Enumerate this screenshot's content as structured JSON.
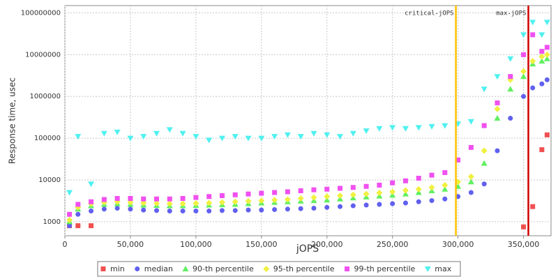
{
  "chart_data": {
    "type": "scatter",
    "log_y": true,
    "grid": true,
    "y_label": "Response time, usec",
    "x_label": "jOPS",
    "xlim": [
      0,
      371000
    ],
    "ylim": [
      460,
      150000000
    ],
    "xticks": [
      0,
      {
        "value": 50000,
        "label": "50,000"
      },
      {
        "value": 100000,
        "label": "100,000"
      },
      {
        "value": 150000,
        "label": "150,000"
      },
      {
        "value": 200000,
        "label": "200,000"
      },
      {
        "value": 250000,
        "label": "250,000"
      },
      {
        "value": 300000,
        "label": "300,000"
      },
      {
        "value": 350000,
        "label": "350,000"
      }
    ],
    "yticks": [
      1000,
      10000,
      100000,
      1000000,
      10000000,
      100000000
    ],
    "vlines": [
      {
        "label": "critical-jOPS",
        "value": 298400,
        "color": "#ffc000"
      },
      {
        "label": "max-jOPS",
        "value": 353700,
        "color": "#d00000"
      }
    ],
    "x": [
      3500,
      10000,
      20000,
      30000,
      40000,
      50000,
      60000,
      70000,
      80000,
      90000,
      100000,
      110000,
      120000,
      130000,
      140000,
      150000,
      160000,
      170000,
      180000,
      190000,
      200000,
      210000,
      220000,
      230000,
      240000,
      250000,
      260000,
      270000,
      280000,
      290000,
      300000,
      310000,
      320000,
      330000,
      340000,
      350000,
      357000,
      364000,
      368000
    ],
    "series": [
      {
        "name": "min",
        "color": "#f05050",
        "marker": "square",
        "values": [
          800,
          800,
          800,
          null,
          null,
          null,
          null,
          null,
          null,
          null,
          null,
          null,
          null,
          null,
          null,
          null,
          null,
          null,
          null,
          null,
          null,
          null,
          null,
          null,
          null,
          null,
          null,
          null,
          null,
          null,
          null,
          null,
          null,
          null,
          null,
          750,
          2300,
          53000,
          120000
        ]
      },
      {
        "name": "median",
        "color": "#6060f0",
        "marker": "circle",
        "values": [
          800,
          1500,
          1800,
          2000,
          2100,
          2000,
          1900,
          1850,
          1800,
          1800,
          1800,
          1800,
          1850,
          1850,
          1900,
          1900,
          1950,
          2000,
          2050,
          2100,
          2200,
          2300,
          2400,
          2500,
          2600,
          2700,
          2800,
          3000,
          3200,
          3500,
          4000,
          5000,
          8000,
          50000,
          300000,
          1000000,
          1600000,
          2000000,
          2500000
        ]
      },
      {
        "name": "90-th percentile",
        "color": "#60f060",
        "marker": "triangle",
        "values": [
          1000,
          2000,
          2400,
          2600,
          2700,
          2600,
          2500,
          2450,
          2400,
          2400,
          2450,
          2500,
          2550,
          2600,
          2700,
          2800,
          2900,
          3000,
          3100,
          3200,
          3300,
          3500,
          3700,
          3900,
          4100,
          4300,
          4600,
          5000,
          5500,
          6000,
          7000,
          9000,
          25000,
          300000,
          1500000,
          3000000,
          6000000,
          7000000,
          8000000
        ]
      },
      {
        "name": "95-th percentile",
        "color": "#f0f040",
        "marker": "diamond",
        "values": [
          1100,
          2200,
          2700,
          2900,
          3000,
          2900,
          2800,
          2750,
          2700,
          2700,
          2750,
          2800,
          2900,
          3000,
          3100,
          3200,
          3300,
          3400,
          3600,
          3800,
          4000,
          4200,
          4400,
          4600,
          4900,
          5200,
          5600,
          6000,
          6600,
          7500,
          9000,
          12000,
          50000,
          500000,
          2500000,
          4000000,
          7000000,
          9000000,
          10000000
        ]
      },
      {
        "name": "99-th percentile",
        "color": "#f050f0",
        "marker": "square",
        "values": [
          1500,
          2600,
          3000,
          3400,
          3600,
          3600,
          3500,
          3500,
          3500,
          3600,
          3800,
          4000,
          4200,
          4400,
          4600,
          4800,
          5000,
          5200,
          5500,
          5800,
          6000,
          6300,
          6600,
          7000,
          7500,
          8500,
          9500,
          11000,
          13000,
          15000,
          30000,
          60000,
          200000,
          700000,
          3000000,
          10000000,
          30000000,
          12000000,
          15000000
        ]
      },
      {
        "name": "max",
        "color": "#50f0f0",
        "marker": "down-triangle",
        "values": [
          5000,
          110000,
          8000,
          130000,
          140000,
          100000,
          110000,
          130000,
          160000,
          130000,
          110000,
          90000,
          100000,
          110000,
          100000,
          100000,
          110000,
          120000,
          110000,
          130000,
          120000,
          110000,
          130000,
          150000,
          170000,
          180000,
          170000,
          180000,
          190000,
          200000,
          220000,
          250000,
          1500000,
          3000000,
          8000000,
          30000000,
          60000000,
          30000000,
          60000000
        ]
      }
    ]
  }
}
